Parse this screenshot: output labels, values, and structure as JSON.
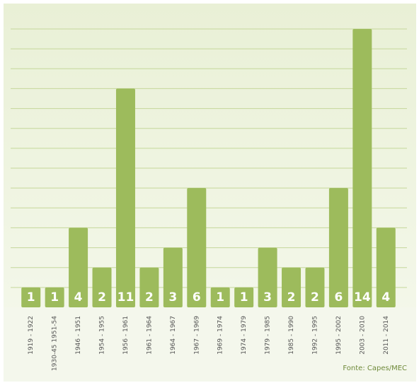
{
  "chart_data": {
    "type": "bar",
    "categories": [
      "1919 - 1922",
      "1930-45 1951-54",
      "1946 - 1951",
      "1954 - 1955",
      "1956 - 1961",
      "1961 - 1964",
      "1964 - 1967",
      "1967 - 1969",
      "1969 - 1974",
      "1974 - 1979",
      "1979 - 1985",
      "1985 - 1990",
      "1992 - 1995",
      "1995 - 2002",
      "2003 - 2010",
      "2011 - 2014"
    ],
    "values": [
      1,
      1,
      4,
      2,
      11,
      2,
      3,
      6,
      1,
      1,
      3,
      2,
      2,
      6,
      14,
      4
    ],
    "color": "#9dbb5c",
    "ylim": [
      0,
      14
    ],
    "yticks": [
      1,
      2,
      3,
      4,
      5,
      6,
      7,
      8,
      9,
      10,
      11,
      12,
      13,
      14
    ],
    "grid": true,
    "source": "Fonte: Capes/MEC"
  }
}
